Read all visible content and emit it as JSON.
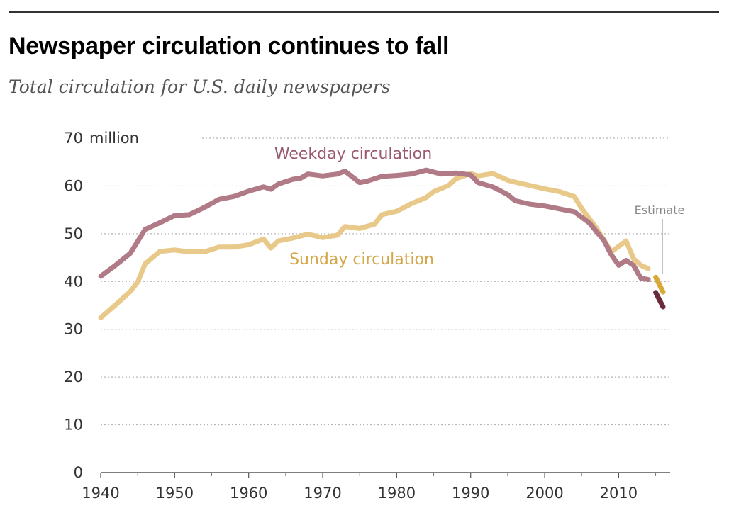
{
  "title": "Newspaper circulation continues to fall",
  "subtitle": "Total circulation for U.S. daily newspapers",
  "chart_data": {
    "type": "line",
    "title": "Newspaper circulation continues to fall",
    "subtitle": "Total circulation for U.S. daily newspapers",
    "y_unit_label": "million",
    "xlim": [
      1940,
      2016
    ],
    "ylim": [
      0,
      70
    ],
    "x_ticks": [
      1940,
      1950,
      1960,
      1970,
      1980,
      1990,
      2000,
      2010
    ],
    "y_ticks": [
      0,
      10,
      20,
      30,
      40,
      50,
      60,
      70
    ],
    "grid": "horizontal dotted",
    "series": [
      {
        "name": "Weekday circulation",
        "color": "#b07a86",
        "estimate_color": "#6b2a3c",
        "points": [
          [
            1940,
            41.1
          ],
          [
            1942,
            43.4
          ],
          [
            1944,
            45.9
          ],
          [
            1945,
            48.4
          ],
          [
            1946,
            50.9
          ],
          [
            1948,
            52.3
          ],
          [
            1950,
            53.8
          ],
          [
            1952,
            54.0
          ],
          [
            1954,
            55.5
          ],
          [
            1956,
            57.2
          ],
          [
            1958,
            57.8
          ],
          [
            1960,
            58.9
          ],
          [
            1962,
            59.8
          ],
          [
            1963,
            59.3
          ],
          [
            1964,
            60.4
          ],
          [
            1966,
            61.4
          ],
          [
            1967,
            61.6
          ],
          [
            1968,
            62.5
          ],
          [
            1970,
            62.1
          ],
          [
            1972,
            62.5
          ],
          [
            1973,
            63.1
          ],
          [
            1975,
            60.7
          ],
          [
            1976,
            61.0
          ],
          [
            1978,
            62.0
          ],
          [
            1980,
            62.2
          ],
          [
            1982,
            62.5
          ],
          [
            1984,
            63.3
          ],
          [
            1986,
            62.5
          ],
          [
            1988,
            62.7
          ],
          [
            1990,
            62.3
          ],
          [
            1991,
            60.7
          ],
          [
            1993,
            59.8
          ],
          [
            1995,
            58.2
          ],
          [
            1996,
            56.9
          ],
          [
            1998,
            56.2
          ],
          [
            2000,
            55.8
          ],
          [
            2002,
            55.2
          ],
          [
            2004,
            54.6
          ],
          [
            2006,
            52.3
          ],
          [
            2008,
            48.6
          ],
          [
            2009,
            45.6
          ],
          [
            2010,
            43.4
          ],
          [
            2011,
            44.4
          ],
          [
            2012,
            43.4
          ],
          [
            2013,
            40.7
          ],
          [
            2014,
            40.4
          ]
        ],
        "estimate": [
          [
            2015,
            37.7
          ],
          [
            2016,
            34.7
          ]
        ]
      },
      {
        "name": "Sunday circulation",
        "color": "#e8c989",
        "estimate_color": "#d8a838",
        "points": [
          [
            1940,
            32.4
          ],
          [
            1942,
            35.1
          ],
          [
            1944,
            37.9
          ],
          [
            1945,
            39.9
          ],
          [
            1946,
            43.7
          ],
          [
            1948,
            46.3
          ],
          [
            1950,
            46.6
          ],
          [
            1952,
            46.2
          ],
          [
            1954,
            46.2
          ],
          [
            1956,
            47.2
          ],
          [
            1958,
            47.2
          ],
          [
            1960,
            47.7
          ],
          [
            1962,
            48.9
          ],
          [
            1963,
            47.0
          ],
          [
            1964,
            48.5
          ],
          [
            1966,
            49.1
          ],
          [
            1968,
            49.9
          ],
          [
            1970,
            49.2
          ],
          [
            1972,
            49.7
          ],
          [
            1973,
            51.5
          ],
          [
            1975,
            51.1
          ],
          [
            1977,
            52.0
          ],
          [
            1978,
            54.0
          ],
          [
            1980,
            54.7
          ],
          [
            1982,
            56.3
          ],
          [
            1984,
            57.6
          ],
          [
            1985,
            58.8
          ],
          [
            1987,
            60.1
          ],
          [
            1988,
            61.5
          ],
          [
            1990,
            62.6
          ],
          [
            1991,
            62.1
          ],
          [
            1993,
            62.6
          ],
          [
            1995,
            61.2
          ],
          [
            1996,
            60.8
          ],
          [
            1998,
            60.1
          ],
          [
            2000,
            59.4
          ],
          [
            2002,
            58.8
          ],
          [
            2004,
            57.8
          ],
          [
            2005,
            55.3
          ],
          [
            2007,
            51.2
          ],
          [
            2009,
            46.2
          ],
          [
            2011,
            48.5
          ],
          [
            2012,
            44.8
          ],
          [
            2013,
            43.4
          ],
          [
            2014,
            42.7
          ]
        ],
        "estimate": [
          [
            2015,
            40.9
          ],
          [
            2016,
            37.8
          ]
        ]
      }
    ],
    "annotations": [
      {
        "text": "Estimate",
        "target": "2015–2016 values"
      }
    ]
  }
}
